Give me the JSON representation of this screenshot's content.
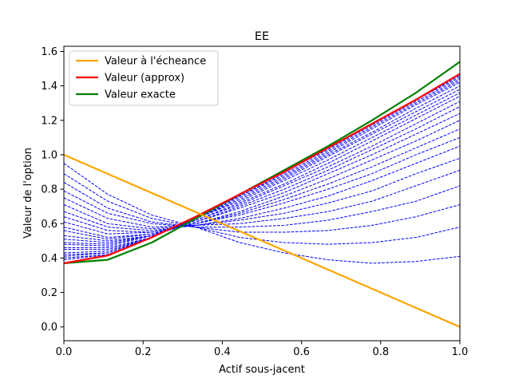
{
  "chart_data": {
    "type": "line",
    "title": "EE",
    "xlabel": "Actif sous-jacent",
    "ylabel": "Valeur de l'option",
    "xlim": [
      0.0,
      1.0
    ],
    "ylim": [
      -0.08,
      1.63
    ],
    "xticks": [
      0.0,
      0.2,
      0.4,
      0.6,
      0.8,
      1.0
    ],
    "xtick_labels": [
      "0.0",
      "0.2",
      "0.4",
      "0.6",
      "0.8",
      "1.0"
    ],
    "yticks": [
      0.0,
      0.2,
      0.4,
      0.6,
      0.8,
      1.0,
      1.2,
      1.4,
      1.6
    ],
    "ytick_labels": [
      "0.0",
      "0.2",
      "0.4",
      "0.6",
      "0.8",
      "1.0",
      "1.2",
      "1.4",
      "1.6"
    ],
    "grid": false,
    "legend_position": "top-left",
    "series": [
      {
        "name": "Valeur à l'écheance",
        "color": "#ffa500",
        "style": "solid",
        "x": [
          0.0,
          1.0
        ],
        "y": [
          1.0,
          0.0
        ]
      },
      {
        "name": "Valeur (approx)",
        "color": "#ff0000",
        "style": "solid",
        "x": [
          0.0,
          0.111,
          0.222,
          0.333,
          0.444,
          0.556,
          0.667,
          0.778,
          0.889,
          1.0
        ],
        "y": [
          0.37,
          0.415,
          0.52,
          0.64,
          0.77,
          0.9,
          1.04,
          1.18,
          1.32,
          1.47
        ]
      },
      {
        "name": "Valeur exacte",
        "color": "#008000",
        "style": "solid",
        "x": [
          0.0,
          0.111,
          0.222,
          0.333,
          0.444,
          0.556,
          0.667,
          0.778,
          0.889,
          1.0
        ],
        "y": [
          0.37,
          0.39,
          0.49,
          0.63,
          0.77,
          0.91,
          1.05,
          1.2,
          1.36,
          1.54
        ]
      }
    ],
    "intermediate_curves": {
      "color": "#0000ff",
      "style": "dashed",
      "x": [
        0.0,
        0.111,
        0.222,
        0.333,
        0.444,
        0.556,
        0.667,
        0.778,
        0.889,
        1.0
      ],
      "curves": [
        [
          0.95,
          0.77,
          0.65,
          0.58,
          0.49,
          0.43,
          0.39,
          0.37,
          0.38,
          0.41
        ],
        [
          0.89,
          0.73,
          0.63,
          0.58,
          0.52,
          0.49,
          0.48,
          0.49,
          0.52,
          0.58
        ],
        [
          0.84,
          0.69,
          0.61,
          0.58,
          0.55,
          0.55,
          0.56,
          0.59,
          0.64,
          0.71
        ],
        [
          0.79,
          0.66,
          0.6,
          0.58,
          0.58,
          0.59,
          0.62,
          0.67,
          0.73,
          0.82
        ],
        [
          0.75,
          0.63,
          0.58,
          0.59,
          0.6,
          0.63,
          0.67,
          0.73,
          0.82,
          0.91
        ],
        [
          0.71,
          0.6,
          0.57,
          0.59,
          0.62,
          0.66,
          0.72,
          0.79,
          0.89,
          0.98
        ],
        [
          0.67,
          0.58,
          0.56,
          0.59,
          0.63,
          0.69,
          0.76,
          0.85,
          0.95,
          1.05
        ],
        [
          0.64,
          0.56,
          0.55,
          0.6,
          0.65,
          0.72,
          0.8,
          0.89,
          1.0,
          1.1
        ],
        [
          0.61,
          0.54,
          0.55,
          0.6,
          0.66,
          0.74,
          0.83,
          0.93,
          1.04,
          1.15
        ],
        [
          0.58,
          0.52,
          0.54,
          0.6,
          0.67,
          0.76,
          0.86,
          0.97,
          1.08,
          1.2
        ],
        [
          0.56,
          0.51,
          0.54,
          0.61,
          0.69,
          0.78,
          0.89,
          1.0,
          1.12,
          1.24
        ],
        [
          0.53,
          0.5,
          0.53,
          0.61,
          0.7,
          0.8,
          0.91,
          1.03,
          1.15,
          1.28
        ],
        [
          0.51,
          0.49,
          0.53,
          0.62,
          0.71,
          0.82,
          0.93,
          1.05,
          1.18,
          1.31
        ],
        [
          0.49,
          0.48,
          0.53,
          0.62,
          0.72,
          0.83,
          0.95,
          1.08,
          1.21,
          1.34
        ],
        [
          0.48,
          0.47,
          0.53,
          0.63,
          0.73,
          0.85,
          0.97,
          1.1,
          1.23,
          1.36
        ],
        [
          0.46,
          0.46,
          0.52,
          0.63,
          0.74,
          0.86,
          0.99,
          1.12,
          1.25,
          1.38
        ],
        [
          0.45,
          0.45,
          0.52,
          0.63,
          0.75,
          0.87,
          1.0,
          1.13,
          1.27,
          1.4
        ],
        [
          0.43,
          0.44,
          0.52,
          0.63,
          0.76,
          0.88,
          1.01,
          1.15,
          1.29,
          1.42
        ],
        [
          0.42,
          0.43,
          0.52,
          0.64,
          0.76,
          0.89,
          1.02,
          1.16,
          1.3,
          1.43
        ],
        [
          0.41,
          0.43,
          0.52,
          0.64,
          0.77,
          0.9,
          1.03,
          1.17,
          1.31,
          1.44
        ],
        [
          0.4,
          0.42,
          0.52,
          0.64,
          0.77,
          0.9,
          1.04,
          1.18,
          1.32,
          1.45
        ],
        [
          0.39,
          0.42,
          0.52,
          0.64,
          0.77,
          0.9,
          1.04,
          1.18,
          1.32,
          1.46
        ]
      ]
    }
  }
}
